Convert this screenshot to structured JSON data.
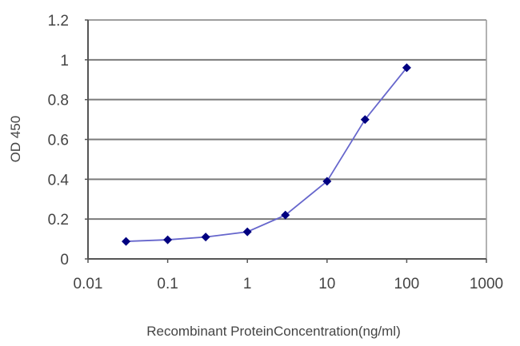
{
  "chart_data": {
    "type": "line",
    "title": "",
    "xlabel": "Recombinant ProteinConcentration(ng/ml)",
    "ylabel": "OD 450",
    "xscale": "log",
    "xlim": [
      0.01,
      1000
    ],
    "ylim": [
      0,
      1.2
    ],
    "x_ticks": [
      "0.01",
      "0.1",
      "1",
      "10",
      "100",
      "1000"
    ],
    "y_ticks": [
      "0",
      "0.2",
      "0.4",
      "0.6",
      "0.8",
      "1",
      "1.2"
    ],
    "grid": {
      "horizontal": true,
      "vertical": false
    },
    "legend": null,
    "series": [
      {
        "name": "OD 450",
        "color": "#000080",
        "line_color": "#6666cc",
        "marker": "diamond",
        "x": [
          0.03,
          0.1,
          0.3,
          1,
          3,
          10,
          30,
          100
        ],
        "values": [
          0.088,
          0.096,
          0.11,
          0.136,
          0.22,
          0.39,
          0.7,
          0.96
        ]
      }
    ]
  },
  "colors": {
    "gridline": "#7a7a7a",
    "axis": "#555555",
    "marker": "#000080",
    "line": "#6666cc"
  }
}
